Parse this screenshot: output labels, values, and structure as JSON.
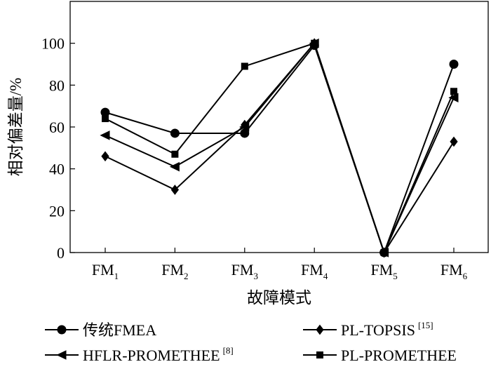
{
  "chart_data": {
    "type": "line",
    "xlabel": "故障模式",
    "ylabel": "相对偏差量/%",
    "categories": [
      {
        "base": "FM",
        "sub": "1"
      },
      {
        "base": "FM",
        "sub": "2"
      },
      {
        "base": "FM",
        "sub": "3"
      },
      {
        "base": "FM",
        "sub": "4"
      },
      {
        "base": "FM",
        "sub": "5"
      },
      {
        "base": "FM",
        "sub": "6"
      }
    ],
    "ylim": [
      0,
      120
    ],
    "yticks": [
      0,
      20,
      40,
      60,
      80,
      100
    ],
    "grid": false,
    "legend_position": "bottom",
    "series": [
      {
        "name": "传统FMEA",
        "ref": "",
        "marker": "circle",
        "values": [
          67,
          57,
          57,
          99,
          0,
          90
        ]
      },
      {
        "name": "PL-TOPSIS",
        "ref": "15",
        "marker": "diamond",
        "values": [
          46,
          30,
          61,
          100,
          0,
          53
        ]
      },
      {
        "name": "HFLR-PROMETHEE",
        "ref": "8",
        "marker": "triangle-left",
        "values": [
          56,
          41,
          60,
          100,
          0,
          74
        ]
      },
      {
        "name": "PL-PROMETHEE",
        "ref": "",
        "marker": "square",
        "values": [
          64,
          47,
          89,
          100,
          0,
          77
        ]
      }
    ]
  }
}
